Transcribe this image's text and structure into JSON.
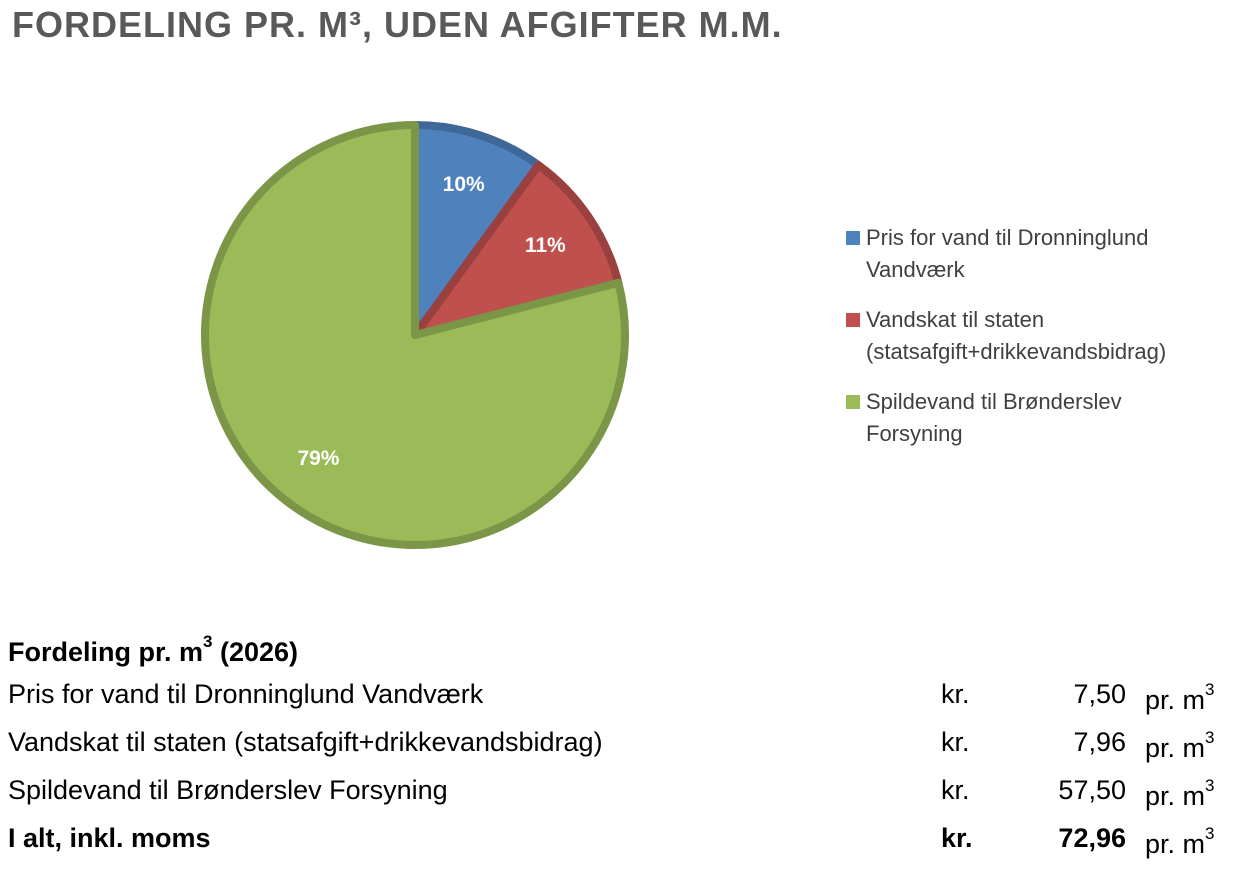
{
  "chart_data": {
    "type": "pie",
    "title": "FORDELING PR. M³, UDEN AFGIFTER M.M.",
    "categories": [
      "Pris for vand til Dronninglund Vandværk",
      "Vandskat til staten (statsafgift+drikkevandsbidrag)",
      "Spildevand til Brønderslev Forsyning"
    ],
    "values": [
      10,
      11,
      79
    ],
    "value_labels": [
      "10%",
      "11%",
      "79%"
    ],
    "colors": [
      "#4f81bd",
      "#c0504d",
      "#9bbb59"
    ],
    "legend": "right"
  },
  "table": {
    "header": {
      "text": "Fordeling pr. m",
      "sup": "3",
      "suffix": "(2026)"
    },
    "rows": [
      [
        "Pris for vand til Dronninglund Vandværk",
        "kr.",
        "7,50",
        "pr. m",
        "3"
      ],
      [
        "Vandskat til staten (statsafgift+drikkevandsbidrag)",
        "kr.",
        "7,96",
        "pr. m",
        "3"
      ],
      [
        "Spildevand til Brønderslev Forsyning",
        "kr.",
        "57,50",
        "pr. m",
        "3"
      ],
      [
        "I alt, inkl. moms",
        "kr.",
        "72,96",
        "pr. m",
        "3"
      ]
    ]
  }
}
